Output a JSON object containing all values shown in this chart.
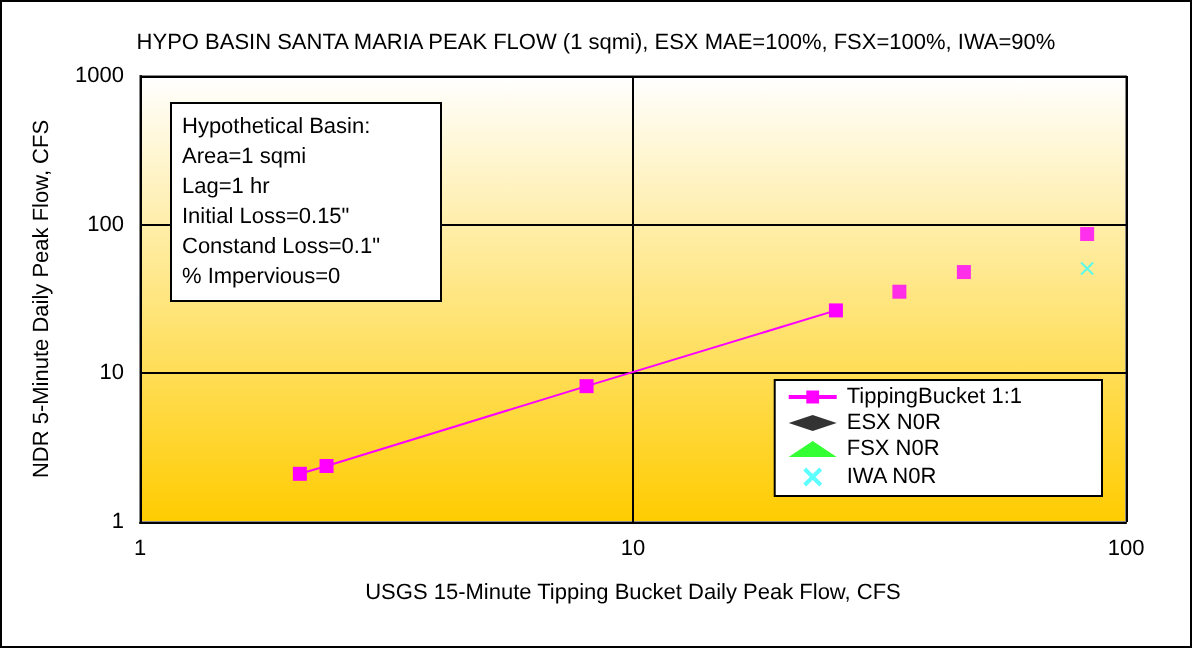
{
  "chart_data": {
    "type": "scatter",
    "title": "HYPO BASIN SANTA MARIA PEAK FLOW (1 sqmi), ESX MAE=100%, FSX=100%, IWA=90%",
    "xlabel": "USGS 15-Minute Tipping Bucket Daily Peak Flow, CFS",
    "ylabel": "NDR 5-Minute Daily Peak Flow, CFS",
    "annotations": [
      "Hypothetical Basin:",
      "Area=1 sqmi",
      "Lag=1 hr",
      "Initial Loss=0.15\"",
      "Constand Loss=0.1\"",
      "% Impervious=0"
    ],
    "series": [
      {
        "name": "TippingBucket 1:1",
        "type": "line",
        "color": "#ff00ff",
        "marker": "square",
        "x": [
          2.11,
          2.39,
          8.05,
          25.8
        ],
        "values": [
          2.11,
          2.38,
          8.2,
          26.5
        ]
      },
      {
        "color": "#ff00ff",
        "marker": "square",
        "x": [
          34.7,
          46.9,
          83.4
        ],
        "values": [
          35.4,
          48,
          86.5
        ]
      },
      {
        "name": "ESX N0R",
        "color": "#000000",
        "marker": "diamond"
      },
      {
        "name": "FSX N0R",
        "color": "#00ff00",
        "marker": "triangle"
      },
      {
        "name": "IWA N0R",
        "color": "#33ffff",
        "marker": "cross",
        "x": [
          83.4
        ],
        "values": [
          50.7
        ]
      }
    ],
    "log": "xy",
    "xlim": [
      1,
      100
    ],
    "ylim": [
      1,
      1000
    ],
    "xticks": [
      1,
      10,
      100
    ],
    "yticks": [
      1,
      10,
      100,
      1000
    ],
    "grid": true,
    "legend": "bottom right"
  }
}
